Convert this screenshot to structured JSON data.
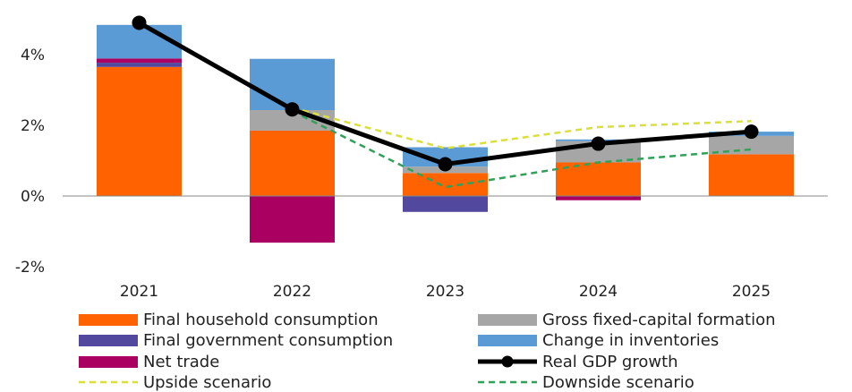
{
  "chart_data": {
    "type": "bar",
    "categories": [
      "2021",
      "2022",
      "2023",
      "2024",
      "2025"
    ],
    "y_ticks": [
      "4%",
      "2%",
      "0%",
      "-2%"
    ],
    "y_tick_values": [
      4,
      2,
      0,
      -2
    ],
    "ylim": [
      -2.2,
      5.0
    ],
    "series": [
      {
        "name": "Final household consumption",
        "color": "#ff6200",
        "kind": "bar",
        "values": [
          3.65,
          1.85,
          0.65,
          0.95,
          1.18
        ]
      },
      {
        "name": "Final government consumption",
        "color": "#52499f",
        "kind": "bar",
        "values": [
          0.12,
          0.0,
          -0.45,
          0.0,
          0.0
        ]
      },
      {
        "name": "Net trade",
        "color": "#aa0062",
        "kind": "bar",
        "values": [
          0.12,
          -1.32,
          0.0,
          -0.12,
          0.0
        ]
      },
      {
        "name": "Gross fixed-capital formation",
        "color": "#a6a6a6",
        "kind": "bar",
        "values": [
          0.0,
          0.58,
          0.18,
          0.6,
          0.52
        ]
      },
      {
        "name": "Change in inventories",
        "color": "#5b9bd5",
        "kind": "bar",
        "values": [
          0.95,
          1.45,
          0.55,
          0.05,
          0.12
        ]
      },
      {
        "name": "Real GDP growth",
        "color": "#000000",
        "kind": "line-marker",
        "values": [
          4.9,
          2.45,
          0.9,
          1.48,
          1.82
        ]
      },
      {
        "name": "Upside scenario",
        "color": "#d9e03c",
        "kind": "dashed",
        "values": [
          null,
          2.5,
          1.35,
          1.95,
          2.12
        ]
      },
      {
        "name": "Downside scenario",
        "color": "#33a05a",
        "kind": "dashed",
        "values": [
          null,
          2.4,
          0.25,
          0.95,
          1.32
        ]
      }
    ],
    "legend_order": [
      "Final household consumption",
      "Gross fixed-capital formation",
      "Final government consumption",
      "Change in inventories",
      "Net trade",
      "Real GDP growth",
      "Upside scenario",
      "Downside scenario"
    ],
    "grid": false,
    "legend_placement": "bottom"
  }
}
